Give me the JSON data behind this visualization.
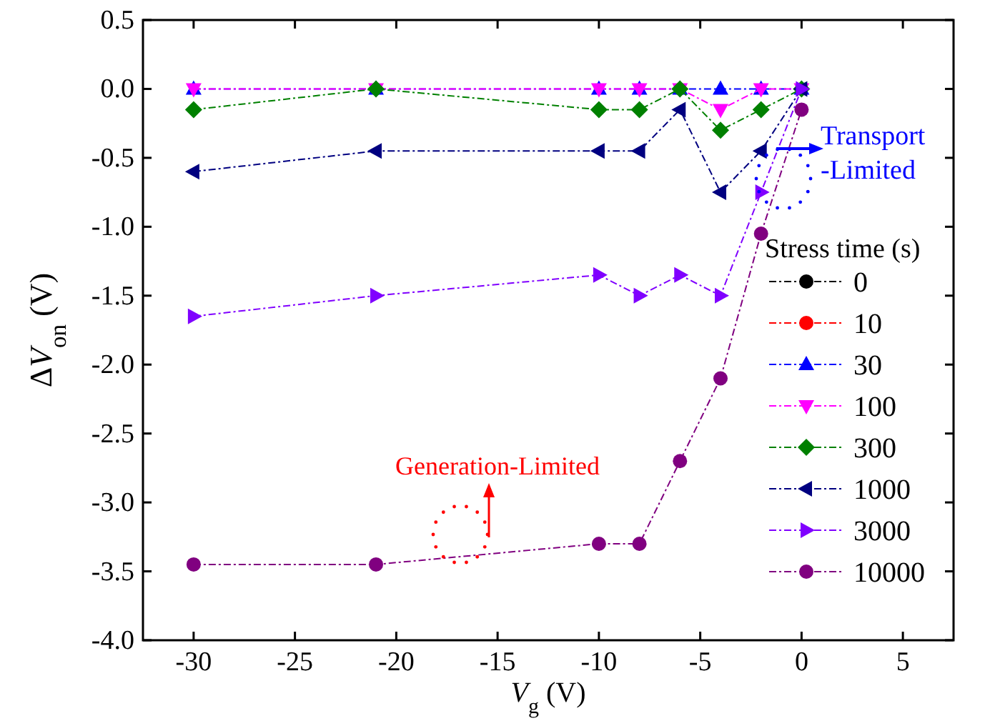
{
  "chart_data": {
    "type": "line",
    "xlabel": "V$_{g}$ (V)",
    "ylabel": "ΔV$_{on}$ (V)",
    "legend_title": "Stress time (s)",
    "x": [
      -30,
      -21,
      -10,
      -8,
      -6,
      -4,
      -2,
      0
    ],
    "series": [
      {
        "name": "0",
        "color": "#000000",
        "marker": "circle",
        "values": [
          null,
          null,
          null,
          null,
          null,
          null,
          null,
          null
        ]
      },
      {
        "name": "10",
        "color": "#ff0000",
        "marker": "circle",
        "values": [
          null,
          null,
          null,
          null,
          null,
          null,
          null,
          null
        ]
      },
      {
        "name": "30",
        "color": "#0000ff",
        "marker": "triangle",
        "values": [
          0,
          0,
          0,
          0,
          0,
          0,
          0,
          0
        ]
      },
      {
        "name": "100",
        "color": "#ff00ff",
        "marker": "triangle-down",
        "values": [
          0,
          0,
          0,
          0,
          0,
          -0.15,
          0,
          0
        ]
      },
      {
        "name": "300",
        "color": "#008000",
        "marker": "diamond",
        "values": [
          -0.15,
          0,
          -0.15,
          -0.15,
          0,
          -0.3,
          -0.15,
          0
        ]
      },
      {
        "name": "1000",
        "color": "#000080",
        "marker": "triangle-left",
        "values": [
          -0.6,
          -0.45,
          -0.45,
          -0.45,
          -0.15,
          -0.75,
          -0.45,
          0
        ]
      },
      {
        "name": "3000",
        "color": "#8000ff",
        "marker": "triangle-right",
        "values": [
          -1.65,
          -1.5,
          -1.35,
          -1.5,
          -1.35,
          -1.5,
          -0.75,
          0
        ]
      },
      {
        "name": "10000",
        "color": "#800080",
        "marker": "circle",
        "values": [
          -3.45,
          -3.45,
          -3.3,
          -3.3,
          -2.7,
          -2.1,
          -1.05,
          -0.15
        ]
      }
    ],
    "xlim": [
      -32.5,
      7.5
    ],
    "xticks": [
      -30,
      -25,
      -20,
      -15,
      -10,
      -5,
      0,
      5
    ],
    "ylim": [
      -4,
      0.5
    ],
    "yticks": [
      {
        "value": -4,
        "label": "-4.0"
      },
      {
        "value": -3.5,
        "label": "-3.5"
      },
      {
        "value": -3,
        "label": "-3.0"
      },
      {
        "value": -2.5,
        "label": "-2.5"
      },
      {
        "value": -2,
        "label": "-2.0"
      },
      {
        "value": -1.5,
        "label": "-1.5"
      },
      {
        "value": -1,
        "label": "-1.0"
      },
      {
        "value": -0.5,
        "label": "-0.5"
      },
      {
        "value": 0,
        "label": "0.0"
      },
      {
        "value": 0.5,
        "label": "0.5"
      }
    ],
    "annotations": [
      "Transport\n-Limited",
      "Generation-Limited"
    ],
    "legend": "right",
    "line_style": "dashed",
    "grid": false
  }
}
